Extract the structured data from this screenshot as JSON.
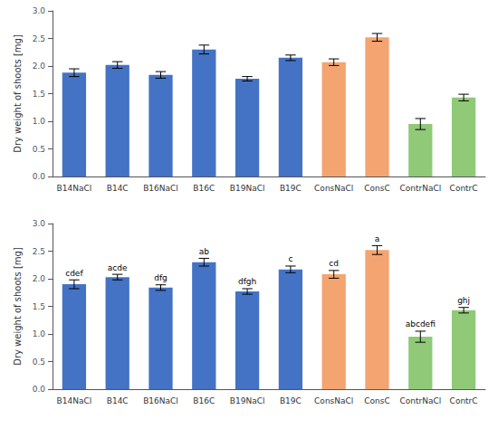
{
  "chart_data": [
    {
      "type": "bar",
      "categories": [
        "B14NaCl",
        "B14C",
        "B16NaCl",
        "B16C",
        "B19NaCl",
        "B19C",
        "ConsNaCl",
        "ConsC",
        "ContrNaCl",
        "ContrC"
      ],
      "values": [
        1.88,
        2.02,
        1.84,
        2.3,
        1.77,
        2.15,
        2.07,
        2.52,
        0.95,
        1.43
      ],
      "errors": [
        0.07,
        0.06,
        0.06,
        0.08,
        0.04,
        0.05,
        0.06,
        0.07,
        0.1,
        0.06
      ],
      "colors": [
        "#4472C4",
        "#4472C4",
        "#4472C4",
        "#4472C4",
        "#4472C4",
        "#4472C4",
        "#F4A470",
        "#F4A470",
        "#90C978",
        "#90C978"
      ],
      "ylabel": "Dry weight of shoots [mg]",
      "ylim": [
        0,
        3
      ],
      "yticks": [
        {
          "value": 0,
          "label": "0.0"
        },
        {
          "value": 0.5,
          "label": "0.5"
        },
        {
          "value": 1,
          "label": "1.0"
        },
        {
          "value": 1.5,
          "label": "1.5"
        },
        {
          "value": 2,
          "label": "2.0"
        },
        {
          "value": 2.5,
          "label": "2.5"
        },
        {
          "value": 3,
          "label": "3.0"
        }
      ],
      "grid": false
    },
    {
      "type": "bar",
      "categories": [
        "B14NaCl",
        "B14C",
        "B16NaCl",
        "B16C",
        "B19NaCl",
        "B19C",
        "ConsNaCl",
        "ConsC",
        "ContrNaCl",
        "ContrC"
      ],
      "values": [
        1.9,
        2.03,
        1.84,
        2.3,
        1.77,
        2.17,
        2.08,
        2.52,
        0.95,
        1.43
      ],
      "errors": [
        0.08,
        0.05,
        0.05,
        0.07,
        0.05,
        0.06,
        0.07,
        0.08,
        0.1,
        0.05
      ],
      "annotations": [
        "cdef",
        "acde",
        "dfg",
        "ab",
        "dfgh",
        "c",
        "cd",
        "a",
        "abcdefi",
        "ghj"
      ],
      "colors": [
        "#4472C4",
        "#4472C4",
        "#4472C4",
        "#4472C4",
        "#4472C4",
        "#4472C4",
        "#F4A470",
        "#F4A470",
        "#90C978",
        "#90C978"
      ],
      "ylabel": "Dry weight of shoots [mg]",
      "ylim": [
        0,
        3
      ],
      "yticks": [
        {
          "value": 0,
          "label": "0.0"
        },
        {
          "value": 0.5,
          "label": "0.5"
        },
        {
          "value": 1,
          "label": "1.0"
        },
        {
          "value": 1.5,
          "label": "1.5"
        },
        {
          "value": 2,
          "label": "2.0"
        },
        {
          "value": 2.5,
          "label": "2.5"
        },
        {
          "value": 3,
          "label": "3.0"
        }
      ],
      "grid": false
    }
  ]
}
